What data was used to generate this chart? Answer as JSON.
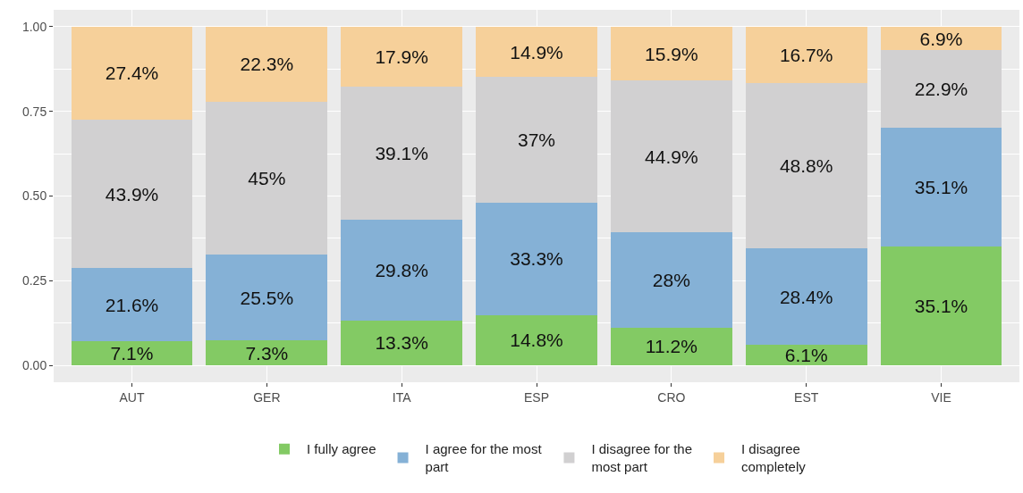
{
  "chart_data": {
    "type": "bar",
    "stacked": true,
    "categories": [
      "AUT",
      "GER",
      "ITA",
      "ESP",
      "CRO",
      "EST",
      "VIE"
    ],
    "ylim": [
      -0.05,
      1.05
    ],
    "yticks": [
      {
        "value": 0,
        "label": "0.00"
      },
      {
        "value": 0.125,
        "label": null
      },
      {
        "value": 0.25,
        "label": "0.25"
      },
      {
        "value": 0.375,
        "label": null
      },
      {
        "value": 0.5,
        "label": "0.50"
      },
      {
        "value": 0.625,
        "label": null
      },
      {
        "value": 0.75,
        "label": "0.75"
      },
      {
        "value": 0.875,
        "label": null
      },
      {
        "value": 1,
        "label": "1.00"
      }
    ],
    "grid": true,
    "legend": "bottom",
    "series": [
      {
        "name": "I fully agree",
        "color": "#83ca64",
        "values": [
          0.071,
          0.073,
          0.133,
          0.148,
          0.112,
          0.061,
          0.351
        ],
        "value_labels": [
          "7.1%",
          "7.3%",
          "13.3%",
          "14.8%",
          "11.2%",
          "6.1%",
          "35.1%"
        ]
      },
      {
        "name": "I agree for the most part",
        "color": "#85b1d6",
        "values": [
          0.216,
          0.255,
          0.298,
          0.333,
          0.28,
          0.284,
          0.351
        ],
        "value_labels": [
          "21.6%",
          "25.5%",
          "29.8%",
          "33.3%",
          "28%",
          "28.4%",
          "35.1%"
        ]
      },
      {
        "name": "I disagree for the most part",
        "color": "#d1d0d1",
        "values": [
          0.439,
          0.45,
          0.391,
          0.37,
          0.449,
          0.488,
          0.229
        ],
        "value_labels": [
          "43.9%",
          "45%",
          "39.1%",
          "37%",
          "44.9%",
          "48.8%",
          "22.9%"
        ]
      },
      {
        "name": "I disagree completely",
        "color": "#f6d09a",
        "values": [
          0.274,
          0.223,
          0.179,
          0.149,
          0.159,
          0.167,
          0.069
        ],
        "value_labels": [
          "27.4%",
          "22.3%",
          "17.9%",
          "14.9%",
          "15.9%",
          "16.7%",
          "6.9%"
        ]
      }
    ]
  }
}
